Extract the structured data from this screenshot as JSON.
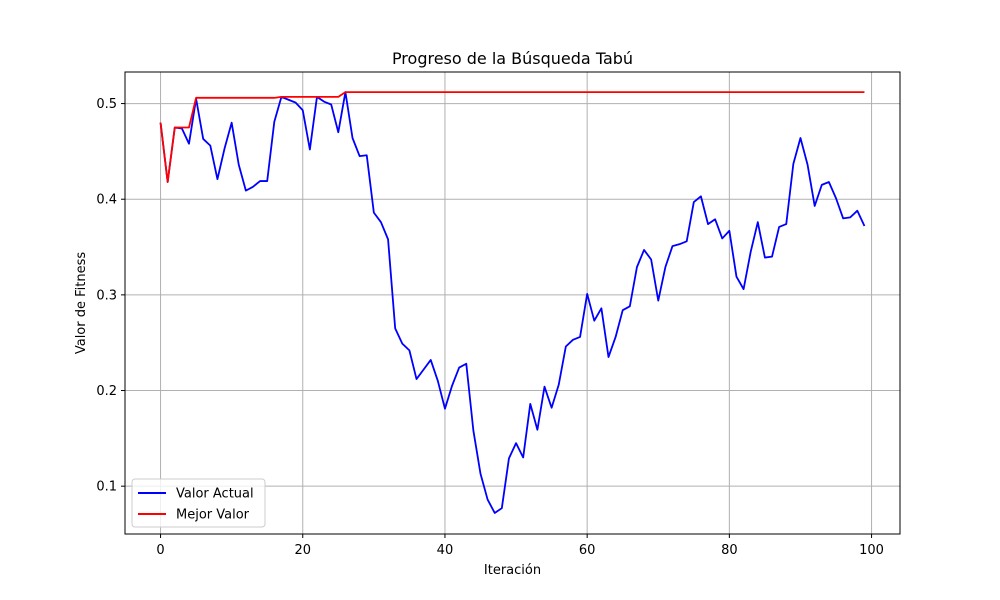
{
  "chart_data": {
    "type": "line",
    "title": "Progreso de la Búsqueda Tabú",
    "xlabel": "Iteración",
    "ylabel": "Valor de Fitness",
    "xlim": [
      -5,
      104
    ],
    "ylim": [
      0.05,
      0.533
    ],
    "xticks": [
      0,
      20,
      40,
      60,
      80,
      100
    ],
    "yticks": [
      0.1,
      0.2,
      0.3,
      0.4,
      0.5
    ],
    "xtick_labels": [
      "0",
      "20",
      "40",
      "60",
      "80",
      "100"
    ],
    "ytick_labels": [
      "0.1",
      "0.2",
      "0.3",
      "0.4",
      "0.5"
    ],
    "grid": true,
    "legend_position": "lower-left",
    "x": [
      0,
      1,
      2,
      3,
      4,
      5,
      6,
      7,
      8,
      9,
      10,
      11,
      12,
      13,
      14,
      15,
      16,
      17,
      18,
      19,
      20,
      21,
      22,
      23,
      24,
      25,
      26,
      27,
      28,
      29,
      30,
      31,
      32,
      33,
      34,
      35,
      36,
      37,
      38,
      39,
      40,
      41,
      42,
      43,
      44,
      45,
      46,
      47,
      48,
      49,
      50,
      51,
      52,
      53,
      54,
      55,
      56,
      57,
      58,
      59,
      60,
      61,
      62,
      63,
      64,
      65,
      66,
      67,
      68,
      69,
      70,
      71,
      72,
      73,
      74,
      75,
      76,
      77,
      78,
      79,
      80,
      81,
      82,
      83,
      84,
      85,
      86,
      87,
      88,
      89,
      90,
      91,
      92,
      93,
      94,
      95,
      96,
      97,
      98,
      99
    ],
    "series": [
      {
        "name": "Valor Actual",
        "color": "#0000ff",
        "values": [
          0.48,
          0.418,
          0.475,
          0.474,
          0.458,
          0.505,
          0.463,
          0.456,
          0.421,
          0.453,
          0.48,
          0.436,
          0.409,
          0.413,
          0.419,
          0.419,
          0.481,
          0.507,
          0.504,
          0.501,
          0.493,
          0.452,
          0.507,
          0.502,
          0.499,
          0.47,
          0.512,
          0.464,
          0.445,
          0.446,
          0.386,
          0.376,
          0.358,
          0.265,
          0.249,
          0.242,
          0.212,
          0.222,
          0.232,
          0.21,
          0.181,
          0.205,
          0.224,
          0.228,
          0.158,
          0.113,
          0.086,
          0.072,
          0.077,
          0.129,
          0.145,
          0.13,
          0.186,
          0.159,
          0.204,
          0.182,
          0.206,
          0.246,
          0.253,
          0.256,
          0.301,
          0.273,
          0.286,
          0.235,
          0.256,
          0.284,
          0.288,
          0.329,
          0.347,
          0.337,
          0.294,
          0.329,
          0.351,
          0.353,
          0.356,
          0.397,
          0.403,
          0.374,
          0.379,
          0.359,
          0.367,
          0.319,
          0.306,
          0.345,
          0.376,
          0.339,
          0.34,
          0.371,
          0.374,
          0.437,
          0.464,
          0.436,
          0.393,
          0.415,
          0.418,
          0.401,
          0.38,
          0.381,
          0.388,
          0.372
        ]
      },
      {
        "name": "Mejor Valor",
        "color": "#ff0000",
        "values": [
          0.48,
          0.418,
          0.475,
          0.475,
          0.475,
          0.506,
          0.506,
          0.506,
          0.506,
          0.506,
          0.506,
          0.506,
          0.506,
          0.506,
          0.506,
          0.506,
          0.506,
          0.507,
          0.507,
          0.507,
          0.507,
          0.507,
          0.507,
          0.507,
          0.507,
          0.507,
          0.512,
          0.512,
          0.512,
          0.512,
          0.512,
          0.512,
          0.512,
          0.512,
          0.512,
          0.512,
          0.512,
          0.512,
          0.512,
          0.512,
          0.512,
          0.512,
          0.512,
          0.512,
          0.512,
          0.512,
          0.512,
          0.512,
          0.512,
          0.512,
          0.512,
          0.512,
          0.512,
          0.512,
          0.512,
          0.512,
          0.512,
          0.512,
          0.512,
          0.512,
          0.512,
          0.512,
          0.512,
          0.512,
          0.512,
          0.512,
          0.512,
          0.512,
          0.512,
          0.512,
          0.512,
          0.512,
          0.512,
          0.512,
          0.512,
          0.512,
          0.512,
          0.512,
          0.512,
          0.512,
          0.512,
          0.512,
          0.512,
          0.512,
          0.512,
          0.512,
          0.512,
          0.512,
          0.512,
          0.512,
          0.512,
          0.512,
          0.512,
          0.512,
          0.512,
          0.512,
          0.512,
          0.512,
          0.512,
          0.512
        ]
      }
    ]
  }
}
